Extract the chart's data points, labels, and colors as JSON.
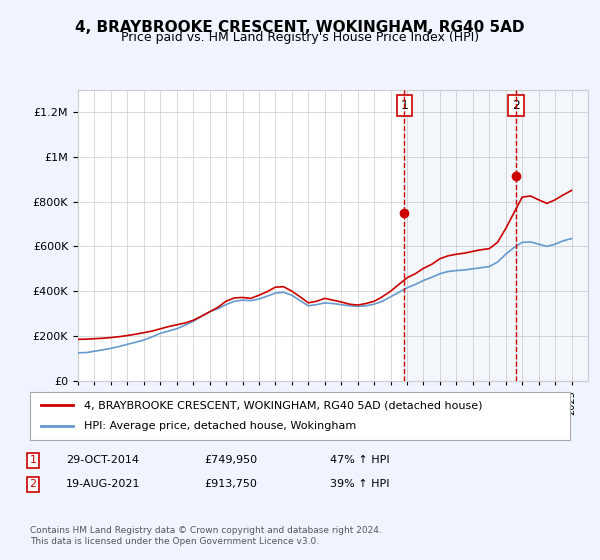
{
  "title": "4, BRAYBROOKE CRESCENT, WOKINGHAM, RG40 5AD",
  "subtitle": "Price paid vs. HM Land Registry's House Price Index (HPI)",
  "legend_line1": "4, BRAYBROOKE CRESCENT, WOKINGHAM, RG40 5AD (detached house)",
  "legend_line2": "HPI: Average price, detached house, Wokingham",
  "footnote": "Contains HM Land Registry data © Crown copyright and database right 2024.\nThis data is licensed under the Open Government Licence v3.0.",
  "annotation1": {
    "label": "1",
    "date": "29-OCT-2014",
    "price": "£749,950",
    "change": "47% ↑ HPI"
  },
  "annotation2": {
    "label": "2",
    "date": "19-AUG-2021",
    "price": "£913,750",
    "change": "39% ↑ HPI"
  },
  "bg_color": "#f0f4ff",
  "plot_bg": "#ffffff",
  "hpi_color": "#6699cc",
  "price_color": "#cc0000",
  "vline_color": "#cc0000",
  "ylim": [
    0,
    1300000
  ],
  "yticks": [
    0,
    200000,
    400000,
    600000,
    800000,
    1000000,
    1200000
  ],
  "xlim_start": 1995,
  "xlim_end": 2026,
  "hpi_x": [
    1995,
    1995.5,
    1996,
    1996.5,
    1997,
    1997.5,
    1998,
    1998.5,
    1999,
    1999.5,
    2000,
    2000.5,
    2001,
    2001.5,
    2002,
    2002.5,
    2003,
    2003.5,
    2004,
    2004.5,
    2005,
    2005.5,
    2006,
    2006.5,
    2007,
    2007.5,
    2008,
    2008.5,
    2009,
    2009.5,
    2010,
    2010.5,
    2011,
    2011.5,
    2012,
    2012.5,
    2013,
    2013.5,
    2014,
    2014.5,
    2015,
    2015.5,
    2016,
    2016.5,
    2017,
    2017.5,
    2018,
    2018.5,
    2019,
    2019.5,
    2020,
    2020.5,
    2021,
    2021.5,
    2022,
    2022.5,
    2023,
    2023.5,
    2024,
    2024.5,
    2025
  ],
  "hpi_y": [
    125000,
    126000,
    132000,
    138000,
    145000,
    153000,
    163000,
    172000,
    182000,
    196000,
    212000,
    222000,
    232000,
    248000,
    265000,
    288000,
    308000,
    322000,
    340000,
    355000,
    360000,
    358000,
    365000,
    378000,
    392000,
    395000,
    382000,
    358000,
    335000,
    340000,
    348000,
    345000,
    340000,
    335000,
    332000,
    335000,
    342000,
    355000,
    375000,
    395000,
    415000,
    430000,
    448000,
    462000,
    478000,
    488000,
    492000,
    495000,
    500000,
    505000,
    510000,
    530000,
    565000,
    595000,
    618000,
    620000,
    610000,
    600000,
    610000,
    625000,
    635000
  ],
  "price_x": [
    1995,
    1995.5,
    1996,
    1996.5,
    1997,
    1997.5,
    1998,
    1998.5,
    1999,
    1999.5,
    2000,
    2000.5,
    2001,
    2001.5,
    2002,
    2002.5,
    2003,
    2003.5,
    2004,
    2004.5,
    2005,
    2005.5,
    2006,
    2006.5,
    2007,
    2007.5,
    2008,
    2008.5,
    2009,
    2009.5,
    2010,
    2010.5,
    2011,
    2011.5,
    2012,
    2012.5,
    2013,
    2013.5,
    2014,
    2014.5,
    2015,
    2015.5,
    2016,
    2016.5,
    2017,
    2017.5,
    2018,
    2018.5,
    2019,
    2019.5,
    2020,
    2020.5,
    2021,
    2021.5,
    2022,
    2022.5,
    2023,
    2023.5,
    2024,
    2024.5,
    2025
  ],
  "price_y": [
    185000,
    186000,
    188000,
    190000,
    193000,
    197000,
    202000,
    208000,
    215000,
    222000,
    232000,
    242000,
    250000,
    258000,
    270000,
    288000,
    308000,
    328000,
    355000,
    370000,
    372000,
    368000,
    382000,
    398000,
    418000,
    420000,
    400000,
    375000,
    348000,
    355000,
    368000,
    360000,
    352000,
    342000,
    338000,
    345000,
    355000,
    375000,
    400000,
    430000,
    460000,
    478000,
    502000,
    520000,
    545000,
    558000,
    565000,
    570000,
    578000,
    585000,
    590000,
    618000,
    680000,
    750000,
    820000,
    825000,
    808000,
    792000,
    808000,
    830000,
    850000
  ],
  "point1_x": 2014.83,
  "point1_y": 749950,
  "point2_x": 2021.63,
  "point2_y": 913750,
  "vline1_x": 2014.83,
  "vline2_x": 2021.63
}
